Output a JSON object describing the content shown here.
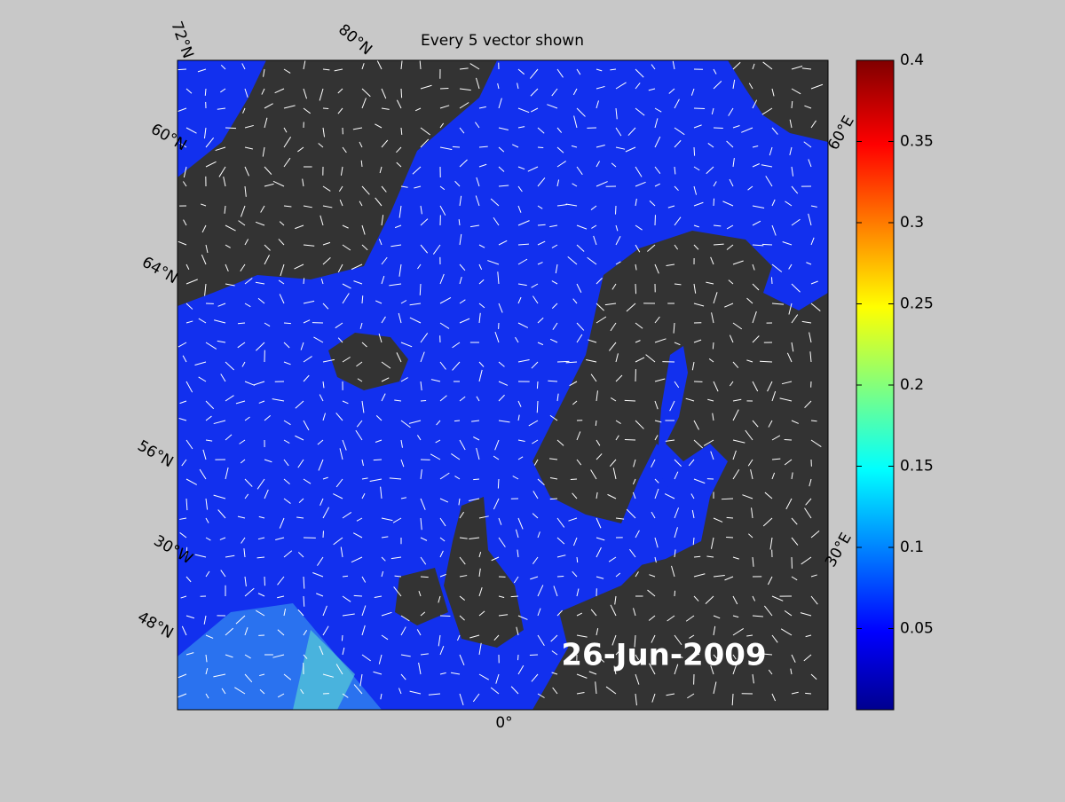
{
  "title": "Every 5 vector shown",
  "date": "26-Jun-2009",
  "grid_labels": [
    "72°N",
    "80°N",
    "60°N",
    "64°N",
    "56°N",
    "30°W",
    "48°N",
    "0°",
    "30°E",
    "60°E"
  ],
  "colorbar": {
    "lim": [
      0,
      0.4
    ],
    "ticks": [
      0.05,
      0.1,
      0.15,
      0.2,
      0.25,
      0.3,
      0.35,
      0.4
    ]
  }
}
